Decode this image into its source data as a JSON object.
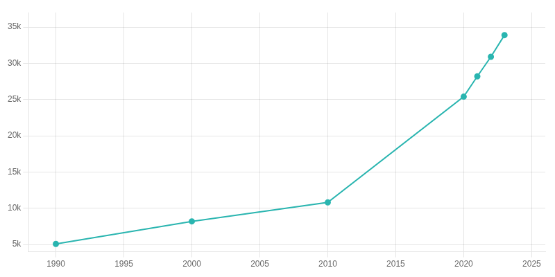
{
  "chart_data": {
    "type": "line",
    "x": [
      1990,
      2000,
      2010,
      2020,
      2021,
      2022,
      2023
    ],
    "values": [
      5082,
      8196,
      10811,
      25401,
      28200,
      30900,
      33900
    ],
    "color": "#2ab5b0",
    "marker": "circle",
    "xlim": [
      1988,
      2026
    ],
    "xticks": [
      1990,
      1995,
      2000,
      2005,
      2010,
      2015,
      2020,
      2025
    ],
    "ylim": [
      4000,
      37000
    ],
    "yticks": [
      {
        "value": 5000,
        "label": "5k"
      },
      {
        "value": 10000,
        "label": "10k"
      },
      {
        "value": 15000,
        "label": "15k"
      },
      {
        "value": 20000,
        "label": "20k"
      },
      {
        "value": 25000,
        "label": "25k"
      },
      {
        "value": 30000,
        "label": "30k"
      },
      {
        "value": 35000,
        "label": "35k"
      }
    ],
    "grid": true
  }
}
